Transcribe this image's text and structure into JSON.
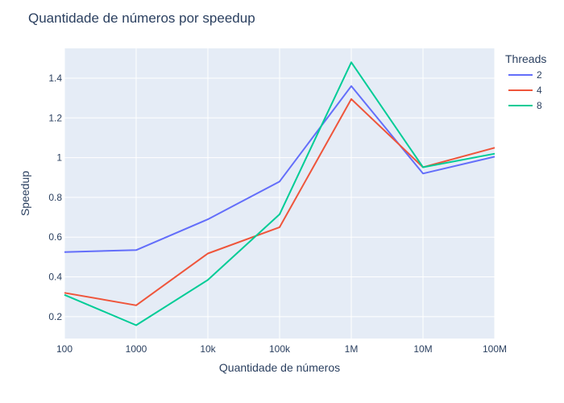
{
  "chart_data": {
    "type": "line",
    "title": "Quantidade de números por speedup",
    "xlabel": "Quantidade de números",
    "ylabel": "Speedup",
    "x_scale": "log",
    "categories": [
      "100",
      "1000",
      "10k",
      "100k",
      "1M",
      "10M",
      "100M"
    ],
    "x": [
      100,
      1000,
      10000,
      100000,
      1000000,
      10000000,
      100000000
    ],
    "yticks": [
      "0.2",
      "0.4",
      "0.6",
      "0.8",
      "1",
      "1.2",
      "1.4"
    ],
    "ytick_values": [
      0.2,
      0.4,
      0.6,
      0.8,
      1.0,
      1.2,
      1.4
    ],
    "ylim": [
      0.09,
      1.55
    ],
    "grid": true,
    "legend_title": "Threads",
    "legend_position": "top-right",
    "series": [
      {
        "name": "2",
        "color": "#636efa",
        "values": [
          0.525,
          0.535,
          0.69,
          0.88,
          1.36,
          0.92,
          1.005
        ]
      },
      {
        "name": "4",
        "color": "#ef553b",
        "values": [
          0.32,
          0.257,
          0.518,
          0.65,
          1.295,
          0.952,
          1.05
        ]
      },
      {
        "name": "8",
        "color": "#00cc96",
        "values": [
          0.31,
          0.157,
          0.385,
          0.715,
          1.48,
          0.952,
          1.02
        ]
      }
    ]
  }
}
